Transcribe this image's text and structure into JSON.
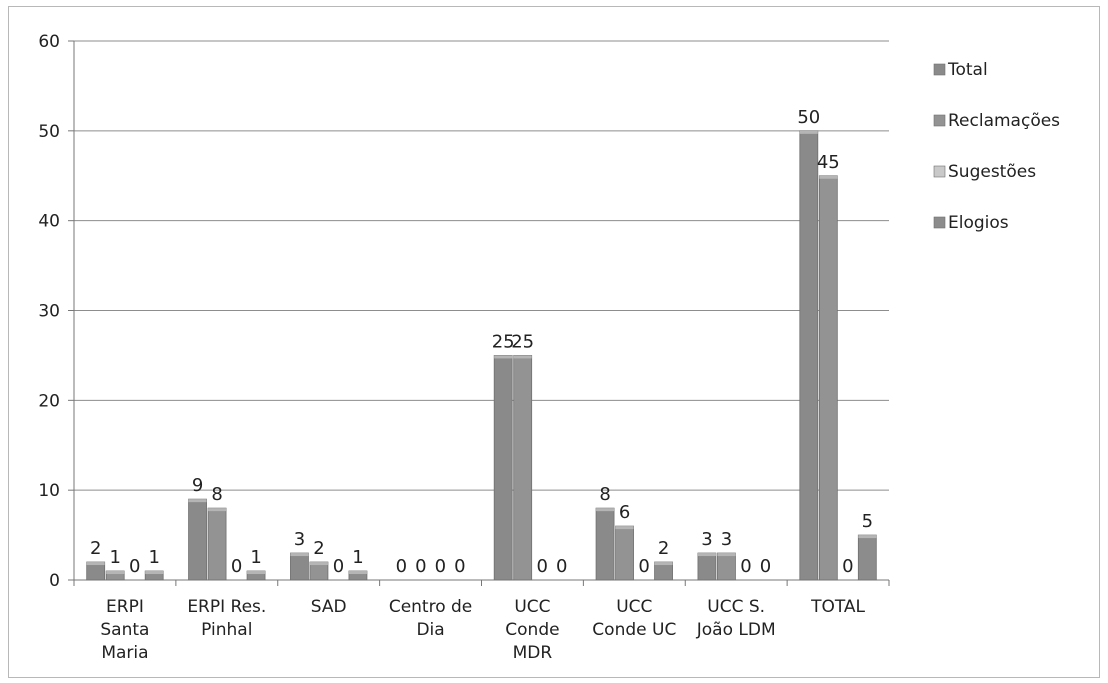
{
  "chart_data": {
    "type": "bar",
    "categories": [
      [
        "ERPI",
        "Santa",
        "Maria"
      ],
      [
        "ERPI Res.",
        "Pinhal"
      ],
      [
        "SAD"
      ],
      [
        "Centro de",
        "Dia"
      ],
      [
        "UCC",
        "Conde",
        "MDR"
      ],
      [
        "UCC",
        "Conde UC"
      ],
      [
        "UCC S.",
        "João LDM"
      ],
      [
        "TOTAL"
      ]
    ],
    "series": [
      {
        "name": "Total",
        "values": [
          2,
          9,
          3,
          0,
          25,
          8,
          3,
          50
        ],
        "color": "#8a8a8a"
      },
      {
        "name": "Reclamações",
        "values": [
          1,
          8,
          2,
          0,
          25,
          6,
          3,
          45
        ],
        "color": "#939393"
      },
      {
        "name": "Sugestões",
        "values": [
          0,
          0,
          0,
          0,
          0,
          0,
          0,
          0
        ],
        "color": "#c9c9c9"
      },
      {
        "name": "Elogios",
        "values": [
          1,
          1,
          1,
          0,
          0,
          2,
          0,
          5
        ],
        "color": "#8c8c8c"
      }
    ],
    "ylim": [
      0,
      60
    ],
    "yticks": [
      0,
      10,
      20,
      30,
      40,
      50,
      60
    ],
    "grid": true,
    "legend": "right"
  }
}
